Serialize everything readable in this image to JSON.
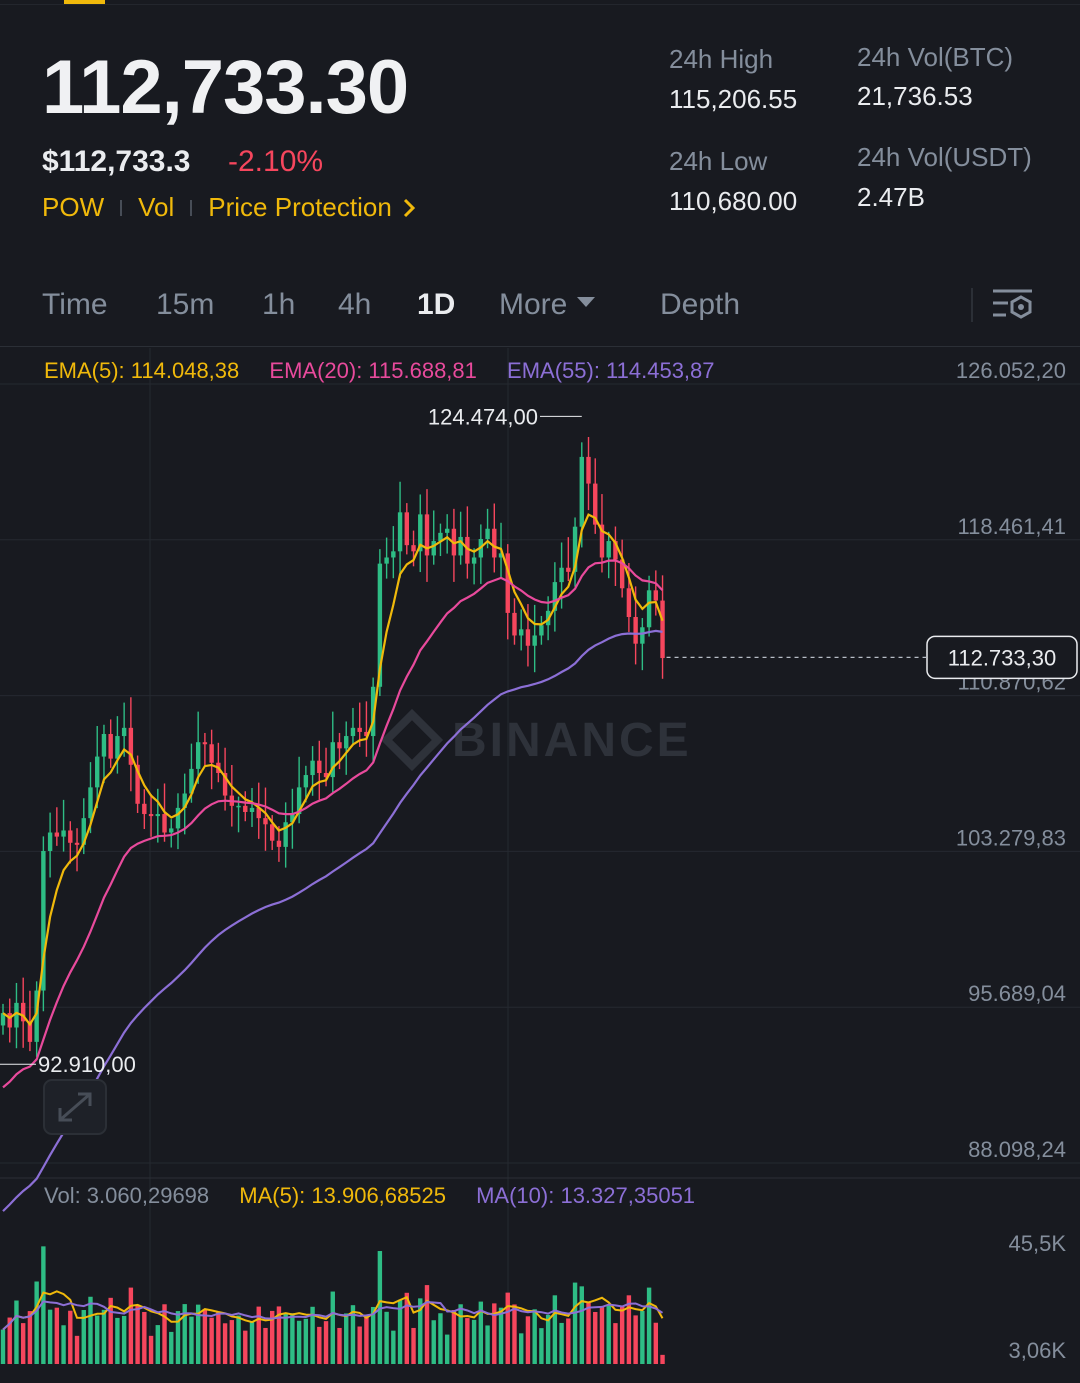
{
  "header": {
    "last_price": "112,733.30",
    "usd_price": "$112,733.3",
    "change_pct": "-2.10%",
    "tags": [
      "POW",
      "Vol",
      "Price Protection"
    ],
    "high_label": "24h High",
    "high_value": "115,206.55",
    "low_label": "24h Low",
    "low_value": "110,680.00",
    "vol_btc_label": "24h Vol(BTC)",
    "vol_btc_value": "21,736.53",
    "vol_usdt_label": "24h Vol(USDT)",
    "vol_usdt_value": "2.47B"
  },
  "tabs": [
    {
      "label": "Time",
      "active": false
    },
    {
      "label": "15m",
      "active": false
    },
    {
      "label": "1h",
      "active": false
    },
    {
      "label": "4h",
      "active": false
    },
    {
      "label": "1D",
      "active": true
    },
    {
      "label": "More",
      "active": false
    },
    {
      "label": "Depth",
      "active": false
    }
  ],
  "icons": {
    "more_caret": "caret-down-icon",
    "settings": "chart-settings-icon",
    "expand": "expand-arrows-icon",
    "brand": "binance-logo-icon"
  },
  "colors": {
    "up": "#2ebd85",
    "down": "#f6465d",
    "ema5": "#f0b90b",
    "ema20": "#e84a9c",
    "ema55": "#8c6fd6",
    "background": "#181a20"
  },
  "chart_data": {
    "type": "candlestick",
    "interval": "1D",
    "indicators": [
      {
        "name": "EMA(5)",
        "label": "EMA(5): 114.048,38",
        "value": 114048.38,
        "color": "#f0b90b"
      },
      {
        "name": "EMA(20)",
        "label": "EMA(20): 115.688,81",
        "value": 115688.81,
        "color": "#e84a9c"
      },
      {
        "name": "EMA(55)",
        "label": "EMA(55): 114.453,87",
        "value": 114453.87,
        "color": "#8c6fd6"
      }
    ],
    "y_ticks": [
      "126.052,20",
      "118.461,41",
      "110.870,62",
      "103.279,83",
      "95.689,04",
      "88.098,24"
    ],
    "y_tick_values": [
      126052.2,
      118461.41,
      110870.62,
      103279.83,
      95689.04,
      88098.24
    ],
    "ylim": [
      88098.24,
      126052.2
    ],
    "current_price_label": "112.733,30",
    "current_price": 112733.3,
    "high_marker_label": "124.474,00",
    "high_marker": 124474.0,
    "low_marker_label": "92.910,00",
    "low_marker": 92910.0,
    "closes": [
      95400,
      94700,
      95900,
      95000,
      94000,
      96500,
      103300,
      104200,
      104000,
      104300,
      103700,
      103600,
      104900,
      106400,
      107900,
      109000,
      107800,
      108900,
      109300,
      107500,
      105600,
      105100,
      105000,
      105100,
      104200,
      104400,
      105400,
      106100,
      107300,
      108600,
      108500,
      107600,
      107100,
      106000,
      105500,
      105500,
      105200,
      105400,
      104900,
      104600,
      103800,
      103500,
      104700,
      105100,
      106400,
      107000,
      107700,
      107100,
      106900,
      108600,
      108300,
      108900,
      109300,
      109100,
      108900,
      111300,
      117300,
      117600,
      117900,
      119800,
      118200,
      117900,
      119700,
      117700,
      118400,
      118800,
      119000,
      117700,
      118600,
      117300,
      117600,
      118500,
      119000,
      117600,
      117800,
      114900,
      113800,
      114100,
      113300,
      113800,
      114300,
      115000,
      116400,
      117100,
      116900,
      119100,
      122500,
      121200,
      119200,
      117600,
      118400,
      117500,
      116100,
      114700,
      113400,
      114200,
      116000,
      115500,
      112700
    ],
    "volume": {
      "label": "Vol: 3.060,29698",
      "ma_labels": [
        "MA(5): 13.906,68525",
        "MA(10): 13.327,35051"
      ],
      "ma_values": [
        13906.68525,
        13327.35051
      ],
      "last_value": 3060.29698,
      "y_ticks": [
        "45,5K",
        "3,06K"
      ],
      "y_tick_values": [
        45500,
        3060
      ]
    }
  },
  "watermark": "BINANCE"
}
